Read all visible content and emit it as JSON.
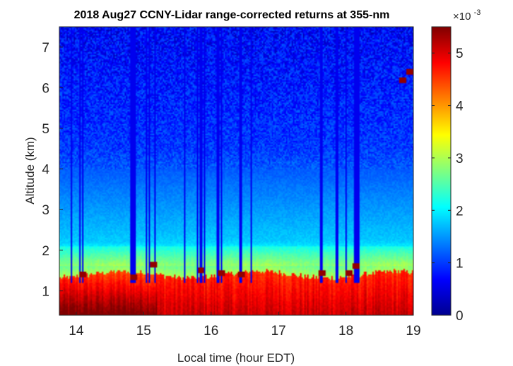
{
  "chart_data": {
    "type": "heatmap",
    "title": "2018 Aug27 CCNY-Lidar range-corrected returns at 355-nm",
    "xlabel": "Local time (hour EDT)",
    "ylabel": "Altitude (km)",
    "xlim": [
      13.75,
      19.0
    ],
    "ylim": [
      0.4,
      7.5
    ],
    "x_ticks": [
      "14",
      "15",
      "16",
      "17",
      "18",
      "19"
    ],
    "y_ticks": [
      "1",
      "2",
      "3",
      "4",
      "5",
      "6",
      "7"
    ],
    "colorbar": {
      "min": 0,
      "max": 0.0055,
      "ticks": [
        "0",
        "1",
        "2",
        "3",
        "4",
        "5"
      ],
      "multiplier_base": "×10",
      "multiplier_exponent": "-3",
      "colormap": "jet"
    },
    "features": {
      "boundary_layer_top_km": 1.4,
      "boundary_layer_value": 0.0048,
      "aerosol_layer_km": [
        1.6,
        2.1
      ],
      "free_troposphere_value": 0.001,
      "cloud_samples": [
        {
          "time": 14.1,
          "altitude": 1.4
        },
        {
          "time": 14.85,
          "altitude": 1.35
        },
        {
          "time": 15.15,
          "altitude": 1.65
        },
        {
          "time": 15.85,
          "altitude": 1.5
        },
        {
          "time": 16.15,
          "altitude": 1.45
        },
        {
          "time": 16.45,
          "altitude": 1.4
        },
        {
          "time": 17.65,
          "altitude": 1.45
        },
        {
          "time": 18.05,
          "altitude": 1.45
        },
        {
          "time": 18.15,
          "altitude": 1.6
        },
        {
          "time": 18.95,
          "altitude": 6.4
        },
        {
          "time": 18.85,
          "altitude": 6.2
        }
      ],
      "signal_dropouts_hour": [
        13.92,
        14.05,
        14.1,
        14.82,
        14.85,
        14.88,
        15.05,
        15.08,
        15.17,
        15.6,
        15.8,
        15.85,
        15.9,
        16.1,
        16.12,
        16.15,
        16.42,
        16.45,
        16.6,
        17.62,
        17.65,
        17.85,
        17.88,
        18.0,
        18.12,
        18.15,
        18.18
      ]
    }
  }
}
